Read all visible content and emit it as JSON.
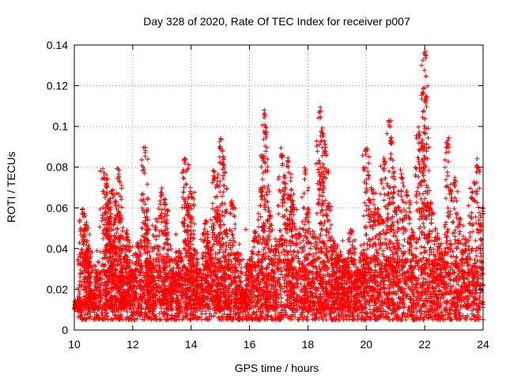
{
  "chart_data": {
    "type": "scatter",
    "title": "Day 328 of 2020, Rate Of TEC Index for receiver p007",
    "xlabel": "GPS time / hours",
    "ylabel": "ROTI / TECUs",
    "xlim": [
      10,
      24
    ],
    "ylim": [
      0,
      0.14
    ],
    "x_ticks": [
      "10",
      "12",
      "14",
      "16",
      "18",
      "20",
      "22",
      "24"
    ],
    "y_ticks": [
      "0",
      "0.02",
      "0.04",
      "0.06",
      "0.08",
      "0.1",
      "0.12",
      "0.14"
    ],
    "grid": true,
    "legend": "none",
    "marker": "plus",
    "color": "#ff0000",
    "series": [
      {
        "x": [
          10.1,
          10.3,
          10.4,
          10.45,
          10.6,
          10.8,
          11.0,
          11.1,
          11.15,
          11.2,
          11.3,
          11.35,
          11.5,
          11.55,
          11.6,
          11.7,
          11.8,
          12.0,
          12.2,
          12.4,
          12.5,
          12.6,
          12.8,
          13.0,
          13.1,
          13.2,
          13.4,
          13.6,
          13.8,
          13.9,
          14.0,
          14.1,
          14.3,
          14.5,
          14.6,
          14.8,
          14.9,
          15.0,
          15.1,
          15.2,
          15.4,
          15.6,
          15.8,
          16.0,
          16.2,
          16.4,
          16.5,
          16.55,
          16.7,
          16.9,
          17.1,
          17.3,
          17.4,
          17.5,
          17.7,
          17.9,
          18.0,
          18.2,
          18.4,
          18.5,
          18.6,
          18.7,
          18.9,
          19.1,
          19.3,
          19.5,
          19.7,
          19.9,
          20.0,
          20.2,
          20.4,
          20.6,
          20.8,
          20.85,
          21.0,
          21.2,
          21.4,
          21.6,
          21.8,
          21.9,
          22.0,
          22.05,
          22.2,
          22.4,
          22.6,
          22.8,
          23.0,
          23.2,
          23.4,
          23.6,
          23.8,
          24.0
        ],
        "y": [
          0.015,
          0.06,
          0.055,
          0.04,
          0.02,
          0.03,
          0.08,
          0.075,
          0.065,
          0.055,
          0.07,
          0.045,
          0.08,
          0.06,
          0.03,
          0.02,
          0.05,
          0.03,
          0.045,
          0.09,
          0.06,
          0.035,
          0.055,
          0.07,
          0.065,
          0.045,
          0.03,
          0.04,
          0.085,
          0.06,
          0.07,
          0.04,
          0.03,
          0.055,
          0.045,
          0.08,
          0.06,
          0.095,
          0.085,
          0.05,
          0.065,
          0.04,
          0.02,
          0.035,
          0.05,
          0.07,
          0.11,
          0.1,
          0.06,
          0.045,
          0.09,
          0.085,
          0.07,
          0.065,
          0.05,
          0.08,
          0.06,
          0.05,
          0.11,
          0.1,
          0.09,
          0.065,
          0.045,
          0.04,
          0.035,
          0.05,
          0.03,
          0.04,
          0.09,
          0.07,
          0.06,
          0.085,
          0.105,
          0.095,
          0.06,
          0.08,
          0.07,
          0.05,
          0.1,
          0.095,
          0.139,
          0.115,
          0.065,
          0.05,
          0.04,
          0.095,
          0.075,
          0.055,
          0.045,
          0.07,
          0.085,
          0.06
        ],
        "background_band": {
          "ymin": 0.005,
          "ymax": 0.035,
          "density": "dense"
        }
      }
    ]
  }
}
